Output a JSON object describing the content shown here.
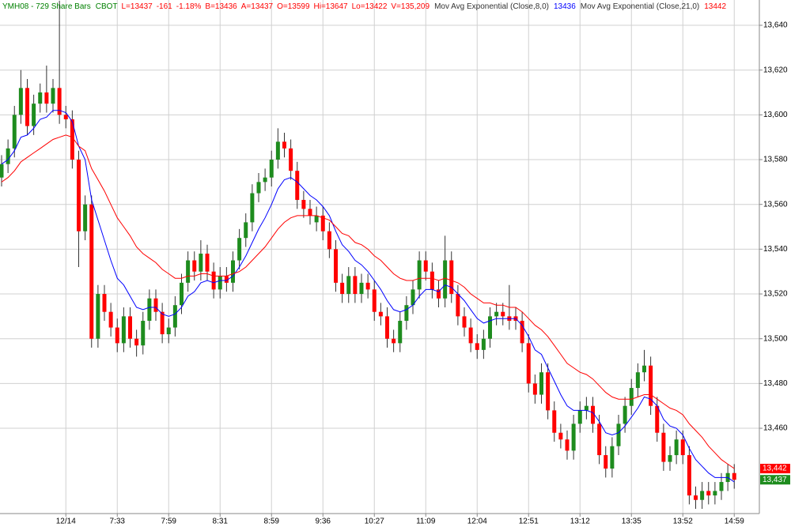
{
  "chart_data": {
    "type": "candlestick",
    "header": {
      "symbol": "YMH08 - 729 Share Bars",
      "exchange": "CBOT",
      "symbol_color": "#008000",
      "stats": [
        "L=13437",
        "-161",
        "-1.18%",
        "B=13436",
        "A=13437",
        "O=13599",
        "Hi=13647",
        "Lo=13422",
        "V=135,209"
      ],
      "stats_color": "#ff0000"
    },
    "categories": [
      null,
      null,
      null,
      null,
      null,
      null,
      null,
      null,
      null,
      null,
      "12/14",
      null,
      null,
      null,
      null,
      null,
      null,
      null,
      "7:33",
      null,
      null,
      null,
      null,
      null,
      null,
      null,
      "7:59",
      null,
      null,
      null,
      null,
      null,
      null,
      null,
      "8:31",
      null,
      null,
      null,
      null,
      null,
      null,
      null,
      "8:59",
      null,
      null,
      null,
      null,
      null,
      null,
      null,
      "9:36",
      null,
      null,
      null,
      null,
      null,
      null,
      null,
      "10:27",
      null,
      null,
      null,
      null,
      null,
      null,
      null,
      "11:09",
      null,
      null,
      null,
      null,
      null,
      null,
      null,
      "12:04",
      null,
      null,
      null,
      null,
      null,
      null,
      null,
      "12:51",
      null,
      null,
      null,
      null,
      null,
      null,
      null,
      "13:12",
      null,
      null,
      null,
      null,
      null,
      null,
      null,
      "13:35",
      null,
      null,
      null,
      null,
      null,
      null,
      null,
      "13:52",
      null,
      null,
      null,
      null,
      null,
      null,
      null,
      "14:59"
    ],
    "open": [
      13572,
      13578,
      13585,
      13600,
      13612,
      13595,
      13605,
      13610,
      13605,
      13612,
      13600,
      13598,
      13580,
      13548,
      13560,
      13500,
      13520,
      13512,
      13505,
      13498,
      13510,
      13500,
      13497,
      13508,
      13518,
      13512,
      13502,
      13505,
      13515,
      13525,
      13535,
      13530,
      13538,
      13530,
      13522,
      13528,
      13525,
      13535,
      13545,
      13552,
      13565,
      13570,
      13572,
      13580,
      13588,
      13585,
      13575,
      13562,
      13558,
      13552,
      13555,
      13548,
      13540,
      13525,
      13520,
      13528,
      13520,
      13525,
      13522,
      13512,
      13510,
      13500,
      13498,
      13508,
      13515,
      13522,
      13535,
      13530,
      13522,
      13518,
      13535,
      13520,
      13510,
      13505,
      13498,
      13495,
      13500,
      13510,
      13512,
      13510,
      13510,
      13508,
      13498,
      13480,
      13475,
      13485,
      13468,
      13458,
      13455,
      13450,
      13462,
      13468,
      13470,
      13462,
      13448,
      13442,
      13452,
      13462,
      13470,
      13478,
      13485,
      13488,
      13470,
      13458,
      13445,
      13448,
      13455,
      13448,
      13430,
      13428,
      13432,
      13430,
      13432,
      13436,
      13440
    ],
    "high": [
      13582,
      13589,
      13604,
      13620,
      13616,
      13609,
      13614,
      13622,
      13616,
      13651,
      13604,
      13602,
      13584,
      13564,
      13564,
      13524,
      13524,
      13516,
      13509,
      13514,
      13514,
      13504,
      13512,
      13522,
      13522,
      13516,
      13509,
      13519,
      13529,
      13539,
      13539,
      13544,
      13542,
      13534,
      13532,
      13532,
      13539,
      13549,
      13556,
      13569,
      13574,
      13576,
      13584,
      13594,
      13592,
      13589,
      13579,
      13566,
      13562,
      13559,
      13559,
      13552,
      13544,
      13529,
      13532,
      13532,
      13529,
      13529,
      13526,
      13516,
      13514,
      13504,
      13512,
      13519,
      13526,
      13539,
      13539,
      13534,
      13526,
      13546,
      13539,
      13524,
      13514,
      13509,
      13502,
      13504,
      13514,
      13516,
      13516,
      13524,
      13514,
      13512,
      13502,
      13484,
      13489,
      13489,
      13472,
      13462,
      13459,
      13466,
      13472,
      13474,
      13474,
      13466,
      13452,
      13456,
      13466,
      13474,
      13482,
      13489,
      13495,
      13492,
      13474,
      13462,
      13452,
      13459,
      13459,
      13452,
      13434,
      13436,
      13436,
      13436,
      13440,
      13444,
      13444
    ],
    "low": [
      13568,
      13574,
      13581,
      13596,
      13591,
      13591,
      13601,
      13601,
      13601,
      13596,
      13594,
      13576,
      13532,
      13544,
      13496,
      13496,
      13508,
      13501,
      13494,
      13494,
      13496,
      13492,
      13493,
      13504,
      13508,
      13498,
      13498,
      13501,
      13511,
      13521,
      13526,
      13526,
      13526,
      13518,
      13518,
      13521,
      13521,
      13531,
      13541,
      13548,
      13561,
      13566,
      13568,
      13576,
      13581,
      13571,
      13558,
      13554,
      13551,
      13548,
      13544,
      13536,
      13521,
      13516,
      13516,
      13516,
      13516,
      13518,
      13508,
      13506,
      13496,
      13494,
      13494,
      13504,
      13511,
      13518,
      13526,
      13518,
      13514,
      13514,
      13516,
      13506,
      13501,
      13494,
      13491,
      13491,
      13496,
      13506,
      13506,
      13504,
      13504,
      13494,
      13476,
      13471,
      13471,
      13464,
      13454,
      13451,
      13446,
      13446,
      13458,
      13464,
      13458,
      13444,
      13438,
      13438,
      13448,
      13458,
      13466,
      13474,
      13481,
      13466,
      13454,
      13441,
      13441,
      13444,
      13444,
      13426,
      13424,
      13424,
      13426,
      13426,
      13428,
      13432,
      13433
    ],
    "close": [
      13578,
      13585,
      13600,
      13612,
      13595,
      13605,
      13610,
      13605,
      13612,
      13600,
      13598,
      13580,
      13548,
      13560,
      13500,
      13520,
      13512,
      13505,
      13498,
      13510,
      13500,
      13497,
      13508,
      13518,
      13512,
      13502,
      13505,
      13515,
      13525,
      13535,
      13530,
      13538,
      13530,
      13522,
      13528,
      13525,
      13535,
      13545,
      13552,
      13565,
      13570,
      13572,
      13580,
      13588,
      13585,
      13575,
      13562,
      13558,
      13555,
      13555,
      13548,
      13540,
      13525,
      13520,
      13528,
      13520,
      13525,
      13522,
      13512,
      13510,
      13500,
      13498,
      13508,
      13515,
      13522,
      13535,
      13530,
      13522,
      13518,
      13535,
      13520,
      13510,
      13505,
      13498,
      13495,
      13500,
      13510,
      13512,
      13510,
      13508,
      13508,
      13498,
      13480,
      13475,
      13485,
      13468,
      13458,
      13455,
      13450,
      13462,
      13468,
      13470,
      13462,
      13448,
      13442,
      13452,
      13462,
      13470,
      13478,
      13485,
      13488,
      13470,
      13458,
      13445,
      13448,
      13455,
      13448,
      13430,
      13428,
      13432,
      13430,
      13432,
      13436,
      13440,
      13437
    ],
    "up_color": "#1e8c1e",
    "down_color": "#ff0000",
    "wick_color": "#333333",
    "series": [
      {
        "name": "Mov Avg Exponential (Close,8,0)",
        "color": "#0000ff",
        "values": [
          13578,
          13580,
          13584,
          13590,
          13591,
          13594,
          13598,
          13599,
          13602,
          13602,
          13601,
          13597,
          13586,
          13580,
          13562,
          13553,
          13544,
          13535,
          13527,
          13524,
          13519,
          13514,
          13513,
          13514,
          13514,
          13511,
          13510,
          13511,
          13514,
          13519,
          13521,
          13525,
          13526,
          13525,
          13526,
          13526,
          13528,
          13532,
          13537,
          13543,
          13549,
          13554,
          13560,
          13567,
          13571,
          13572,
          13570,
          13567,
          13564,
          13562,
          13559,
          13555,
          13548,
          13542,
          13539,
          13535,
          13533,
          13530,
          13526,
          13522,
          13517,
          13513,
          13512,
          13513,
          13515,
          13519,
          13522,
          13522,
          13521,
          13524,
          13523,
          13520,
          13517,
          13513,
          13509,
          13507,
          13508,
          13509,
          13509,
          13509,
          13509,
          13506,
          13501,
          13495,
          13493,
          13487,
          13481,
          13475,
          13470,
          13468,
          13468,
          13468,
          13467,
          13463,
          13458,
          13457,
          13458,
          13461,
          13465,
          13469,
          13474,
          13473,
          13470,
          13464,
          13461,
          13460,
          13457,
          13451,
          13446,
          13443,
          13440,
          13438,
          13438,
          13438,
          13436
        ]
      },
      {
        "name": "Mov Avg Exponential (Close,21,0)",
        "color": "#ff0000",
        "values": [
          13570,
          13572,
          13575,
          13579,
          13581,
          13583,
          13585,
          13587,
          13589,
          13590,
          13591,
          13590,
          13586,
          13584,
          13576,
          13571,
          13566,
          13560,
          13554,
          13550,
          13546,
          13541,
          13538,
          13536,
          13534,
          13531,
          13529,
          13527,
          13527,
          13528,
          13528,
          13529,
          13529,
          13528,
          13528,
          13528,
          13529,
          13530,
          13532,
          13535,
          13538,
          13541,
          13545,
          13549,
          13552,
          13554,
          13555,
          13555,
          13555,
          13555,
          13554,
          13553,
          13550,
          13547,
          13546,
          13543,
          13542,
          13540,
          13537,
          13535,
          13532,
          13529,
          13527,
          13526,
          13526,
          13527,
          13527,
          13527,
          13526,
          13527,
          13526,
          13525,
          13523,
          13520,
          13518,
          13516,
          13516,
          13515,
          13515,
          13514,
          13514,
          13512,
          13509,
          13506,
          13504,
          13501,
          13497,
          13493,
          13489,
          13487,
          13485,
          13484,
          13482,
          13479,
          13476,
          13474,
          13473,
          13473,
          13473,
          13474,
          13475,
          13475,
          13473,
          13471,
          13469,
          13468,
          13466,
          13462,
          13459,
          13456,
          13452,
          13449,
          13446,
          13444,
          13442
        ]
      }
    ],
    "last_price": {
      "value": 13437,
      "label": "13,437",
      "color": "#1e8c1e"
    },
    "last_ma": {
      "value": 13442,
      "label": "13,442",
      "color": "#ff0000"
    },
    "ylim": [
      13421.9,
      13651.3
    ],
    "yticks": [
      {
        "value": 13460,
        "label": "13,460"
      },
      {
        "value": 13480,
        "label": "13,480"
      },
      {
        "value": 13500,
        "label": "13,500"
      },
      {
        "value": 13520,
        "label": "13,520"
      },
      {
        "value": 13540,
        "label": "13,540"
      },
      {
        "value": 13560,
        "label": "13,560"
      },
      {
        "value": 13580,
        "label": "13,580"
      },
      {
        "value": 13600,
        "label": "13,600"
      },
      {
        "value": 13620,
        "label": "13,620"
      },
      {
        "value": 13640,
        "label": "13,640"
      }
    ],
    "grid": true
  }
}
